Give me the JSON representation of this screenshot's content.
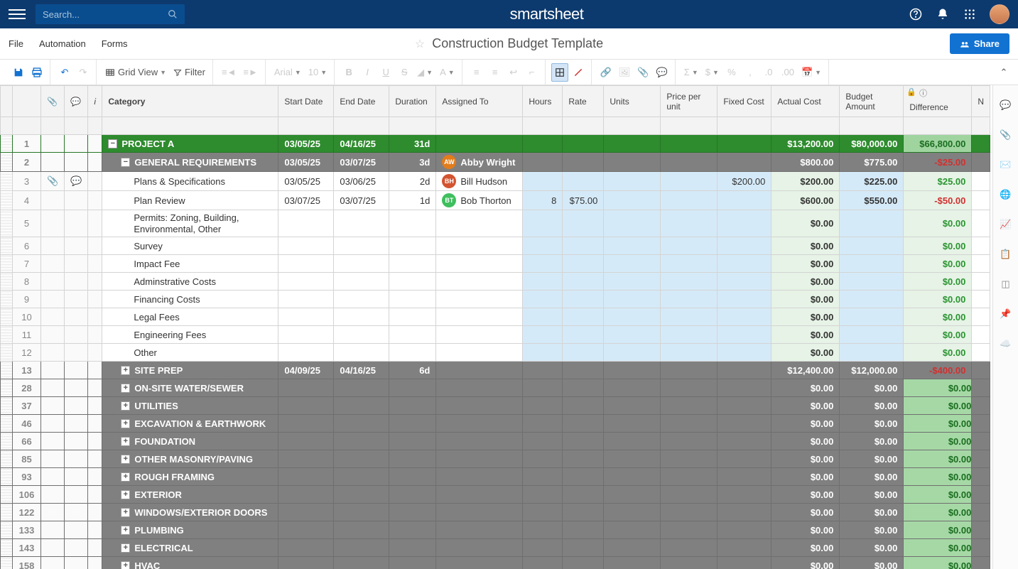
{
  "app": {
    "name": "smartsheet"
  },
  "search": {
    "placeholder": "Search..."
  },
  "menus": {
    "file": "File",
    "automation": "Automation",
    "forms": "Forms"
  },
  "title": "Construction Budget Template",
  "share": "Share",
  "toolbar": {
    "gridview": "Grid View",
    "filter": "Filter",
    "font": "Arial",
    "fontsize": "10"
  },
  "columns": {
    "category": "Category",
    "start": "Start Date",
    "end": "End Date",
    "duration": "Duration",
    "assigned": "Assigned To",
    "hours": "Hours",
    "rate": "Rate",
    "units": "Units",
    "ppu": "Price per unit",
    "fixed": "Fixed Cost",
    "actual": "Actual Cost",
    "budget": "Budget Amount",
    "diff": "Difference",
    "n": "N"
  },
  "colors": {
    "project_bg": "#2e8b2e",
    "section_bg": "#808080",
    "hl": "#d5eaf8",
    "hl2": "#e6f3e6",
    "pos": "#2a9430",
    "neg": "#d13030",
    "chip_aw": "#e27c1c",
    "chip_bh": "#d35430",
    "chip_bt": "#3fbf5e"
  },
  "rows": [
    {
      "num": "1",
      "type": "project",
      "indent": 0,
      "toggle": "-",
      "category": "PROJECT A",
      "start": "03/05/25",
      "end": "04/16/25",
      "duration": "31d",
      "assigned": "",
      "hours": "",
      "rate": "",
      "units": "",
      "ppu": "",
      "fixed": "",
      "actual": "$13,200.00",
      "budget": "$80,000.00",
      "diff": "$66,800.00",
      "diffclass": "pos"
    },
    {
      "num": "2",
      "type": "section",
      "indent": 1,
      "toggle": "-",
      "category": "GENERAL REQUIREMENTS",
      "start": "03/05/25",
      "end": "03/07/25",
      "duration": "3d",
      "assigned": "Abby Wright",
      "chip": "AW",
      "chipcolor": "#e27c1c",
      "hours": "",
      "rate": "",
      "units": "",
      "ppu": "",
      "fixed": "",
      "actual": "$800.00",
      "budget": "$775.00",
      "diff": "-$25.00",
      "diffclass": "neg"
    },
    {
      "num": "3",
      "type": "detail",
      "indent": 2,
      "category": "Plans & Specifications",
      "start": "03/05/25",
      "end": "03/06/25",
      "duration": "2d",
      "assigned": "Bill Hudson",
      "chip": "BH",
      "chipcolor": "#d35430",
      "hours": "",
      "rate": "",
      "units": "",
      "ppu": "",
      "fixed": "$200.00",
      "actual": "$200.00",
      "budget": "$225.00",
      "diff": "$25.00",
      "diffclass": "pos",
      "att": true,
      "cmt": true
    },
    {
      "num": "4",
      "type": "detail",
      "indent": 2,
      "category": "Plan Review",
      "start": "03/07/25",
      "end": "03/07/25",
      "duration": "1d",
      "assigned": "Bob Thorton",
      "chip": "BT",
      "chipcolor": "#3fbf5e",
      "hours": "8",
      "rate": "$75.00",
      "units": "",
      "ppu": "",
      "fixed": "",
      "actual": "$600.00",
      "budget": "$550.00",
      "diff": "-$50.00",
      "diffclass": "neg"
    },
    {
      "num": "5",
      "type": "detail",
      "indent": 2,
      "category": "Permits: Zoning, Building, Environmental, Other",
      "wrap": true,
      "start": "",
      "end": "",
      "duration": "",
      "assigned": "",
      "hours": "",
      "rate": "",
      "units": "",
      "ppu": "",
      "fixed": "",
      "actual": "$0.00",
      "budget": "",
      "diff": "$0.00",
      "diffclass": "pos"
    },
    {
      "num": "6",
      "type": "detail",
      "indent": 2,
      "category": "Survey",
      "start": "",
      "end": "",
      "duration": "",
      "assigned": "",
      "hours": "",
      "rate": "",
      "units": "",
      "ppu": "",
      "fixed": "",
      "actual": "$0.00",
      "budget": "",
      "diff": "$0.00",
      "diffclass": "pos"
    },
    {
      "num": "7",
      "type": "detail",
      "indent": 2,
      "category": "Impact Fee",
      "start": "",
      "end": "",
      "duration": "",
      "assigned": "",
      "hours": "",
      "rate": "",
      "units": "",
      "ppu": "",
      "fixed": "",
      "actual": "$0.00",
      "budget": "",
      "diff": "$0.00",
      "diffclass": "pos"
    },
    {
      "num": "8",
      "type": "detail",
      "indent": 2,
      "category": "Adminstrative Costs",
      "start": "",
      "end": "",
      "duration": "",
      "assigned": "",
      "hours": "",
      "rate": "",
      "units": "",
      "ppu": "",
      "fixed": "",
      "actual": "$0.00",
      "budget": "",
      "diff": "$0.00",
      "diffclass": "pos"
    },
    {
      "num": "9",
      "type": "detail",
      "indent": 2,
      "category": "Financing Costs",
      "start": "",
      "end": "",
      "duration": "",
      "assigned": "",
      "hours": "",
      "rate": "",
      "units": "",
      "ppu": "",
      "fixed": "",
      "actual": "$0.00",
      "budget": "",
      "diff": "$0.00",
      "diffclass": "pos"
    },
    {
      "num": "10",
      "type": "detail",
      "indent": 2,
      "category": "Legal Fees",
      "start": "",
      "end": "",
      "duration": "",
      "assigned": "",
      "hours": "",
      "rate": "",
      "units": "",
      "ppu": "",
      "fixed": "",
      "actual": "$0.00",
      "budget": "",
      "diff": "$0.00",
      "diffclass": "pos"
    },
    {
      "num": "11",
      "type": "detail",
      "indent": 2,
      "category": "Engineering Fees",
      "start": "",
      "end": "",
      "duration": "",
      "assigned": "",
      "hours": "",
      "rate": "",
      "units": "",
      "ppu": "",
      "fixed": "",
      "actual": "$0.00",
      "budget": "",
      "diff": "$0.00",
      "diffclass": "pos"
    },
    {
      "num": "12",
      "type": "detail",
      "indent": 2,
      "category": "Other",
      "start": "",
      "end": "",
      "duration": "",
      "assigned": "",
      "hours": "",
      "rate": "",
      "units": "",
      "ppu": "",
      "fixed": "",
      "actual": "$0.00",
      "budget": "",
      "diff": "$0.00",
      "diffclass": "pos"
    },
    {
      "num": "13",
      "type": "section",
      "indent": 1,
      "toggle": "+",
      "category": "SITE PREP",
      "start": "04/09/25",
      "end": "04/16/25",
      "duration": "6d",
      "assigned": "",
      "hours": "",
      "rate": "",
      "units": "",
      "ppu": "",
      "fixed": "",
      "actual": "$12,400.00",
      "budget": "$12,000.00",
      "diff": "-$400.00",
      "diffclass": "neg"
    },
    {
      "num": "28",
      "type": "section",
      "indent": 1,
      "toggle": "+",
      "category": "ON-SITE WATER/SEWER",
      "start": "",
      "end": "",
      "duration": "",
      "assigned": "",
      "hours": "",
      "rate": "",
      "units": "",
      "ppu": "",
      "fixed": "",
      "actual": "$0.00",
      "budget": "$0.00",
      "diff": "$0.00",
      "diffclass": "pos"
    },
    {
      "num": "37",
      "type": "section",
      "indent": 1,
      "toggle": "+",
      "category": "UTILITIES",
      "start": "",
      "end": "",
      "duration": "",
      "assigned": "",
      "hours": "",
      "rate": "",
      "units": "",
      "ppu": "",
      "fixed": "",
      "actual": "$0.00",
      "budget": "$0.00",
      "diff": "$0.00",
      "diffclass": "pos"
    },
    {
      "num": "46",
      "type": "section",
      "indent": 1,
      "toggle": "+",
      "category": "EXCAVATION & EARTHWORK",
      "start": "",
      "end": "",
      "duration": "",
      "assigned": "",
      "hours": "",
      "rate": "",
      "units": "",
      "ppu": "",
      "fixed": "",
      "actual": "$0.00",
      "budget": "$0.00",
      "diff": "$0.00",
      "diffclass": "pos"
    },
    {
      "num": "66",
      "type": "section",
      "indent": 1,
      "toggle": "+",
      "category": "FOUNDATION",
      "start": "",
      "end": "",
      "duration": "",
      "assigned": "",
      "hours": "",
      "rate": "",
      "units": "",
      "ppu": "",
      "fixed": "",
      "actual": "$0.00",
      "budget": "$0.00",
      "diff": "$0.00",
      "diffclass": "pos"
    },
    {
      "num": "85",
      "type": "section",
      "indent": 1,
      "toggle": "+",
      "category": "OTHER MASONRY/PAVING",
      "start": "",
      "end": "",
      "duration": "",
      "assigned": "",
      "hours": "",
      "rate": "",
      "units": "",
      "ppu": "",
      "fixed": "",
      "actual": "$0.00",
      "budget": "$0.00",
      "diff": "$0.00",
      "diffclass": "pos"
    },
    {
      "num": "93",
      "type": "section",
      "indent": 1,
      "toggle": "+",
      "category": "ROUGH FRAMING",
      "start": "",
      "end": "",
      "duration": "",
      "assigned": "",
      "hours": "",
      "rate": "",
      "units": "",
      "ppu": "",
      "fixed": "",
      "actual": "$0.00",
      "budget": "$0.00",
      "diff": "$0.00",
      "diffclass": "pos"
    },
    {
      "num": "106",
      "type": "section",
      "indent": 1,
      "toggle": "+",
      "category": "EXTERIOR",
      "start": "",
      "end": "",
      "duration": "",
      "assigned": "",
      "hours": "",
      "rate": "",
      "units": "",
      "ppu": "",
      "fixed": "",
      "actual": "$0.00",
      "budget": "$0.00",
      "diff": "$0.00",
      "diffclass": "pos"
    },
    {
      "num": "122",
      "type": "section",
      "indent": 1,
      "toggle": "+",
      "category": "WINDOWS/EXTERIOR DOORS",
      "start": "",
      "end": "",
      "duration": "",
      "assigned": "",
      "hours": "",
      "rate": "",
      "units": "",
      "ppu": "",
      "fixed": "",
      "actual": "$0.00",
      "budget": "$0.00",
      "diff": "$0.00",
      "diffclass": "pos"
    },
    {
      "num": "133",
      "type": "section",
      "indent": 1,
      "toggle": "+",
      "category": "PLUMBING",
      "start": "",
      "end": "",
      "duration": "",
      "assigned": "",
      "hours": "",
      "rate": "",
      "units": "",
      "ppu": "",
      "fixed": "",
      "actual": "$0.00",
      "budget": "$0.00",
      "diff": "$0.00",
      "diffclass": "pos"
    },
    {
      "num": "143",
      "type": "section",
      "indent": 1,
      "toggle": "+",
      "category": "ELECTRICAL",
      "start": "",
      "end": "",
      "duration": "",
      "assigned": "",
      "hours": "",
      "rate": "",
      "units": "",
      "ppu": "",
      "fixed": "",
      "actual": "$0.00",
      "budget": "$0.00",
      "diff": "$0.00",
      "diffclass": "pos"
    },
    {
      "num": "158",
      "type": "section",
      "indent": 1,
      "toggle": "+",
      "category": "HVAC",
      "start": "",
      "end": "",
      "duration": "",
      "assigned": "",
      "hours": "",
      "rate": "",
      "units": "",
      "ppu": "",
      "fixed": "",
      "actual": "$0.00",
      "budget": "$0.00",
      "diff": "$0.00",
      "diffclass": "pos"
    }
  ]
}
